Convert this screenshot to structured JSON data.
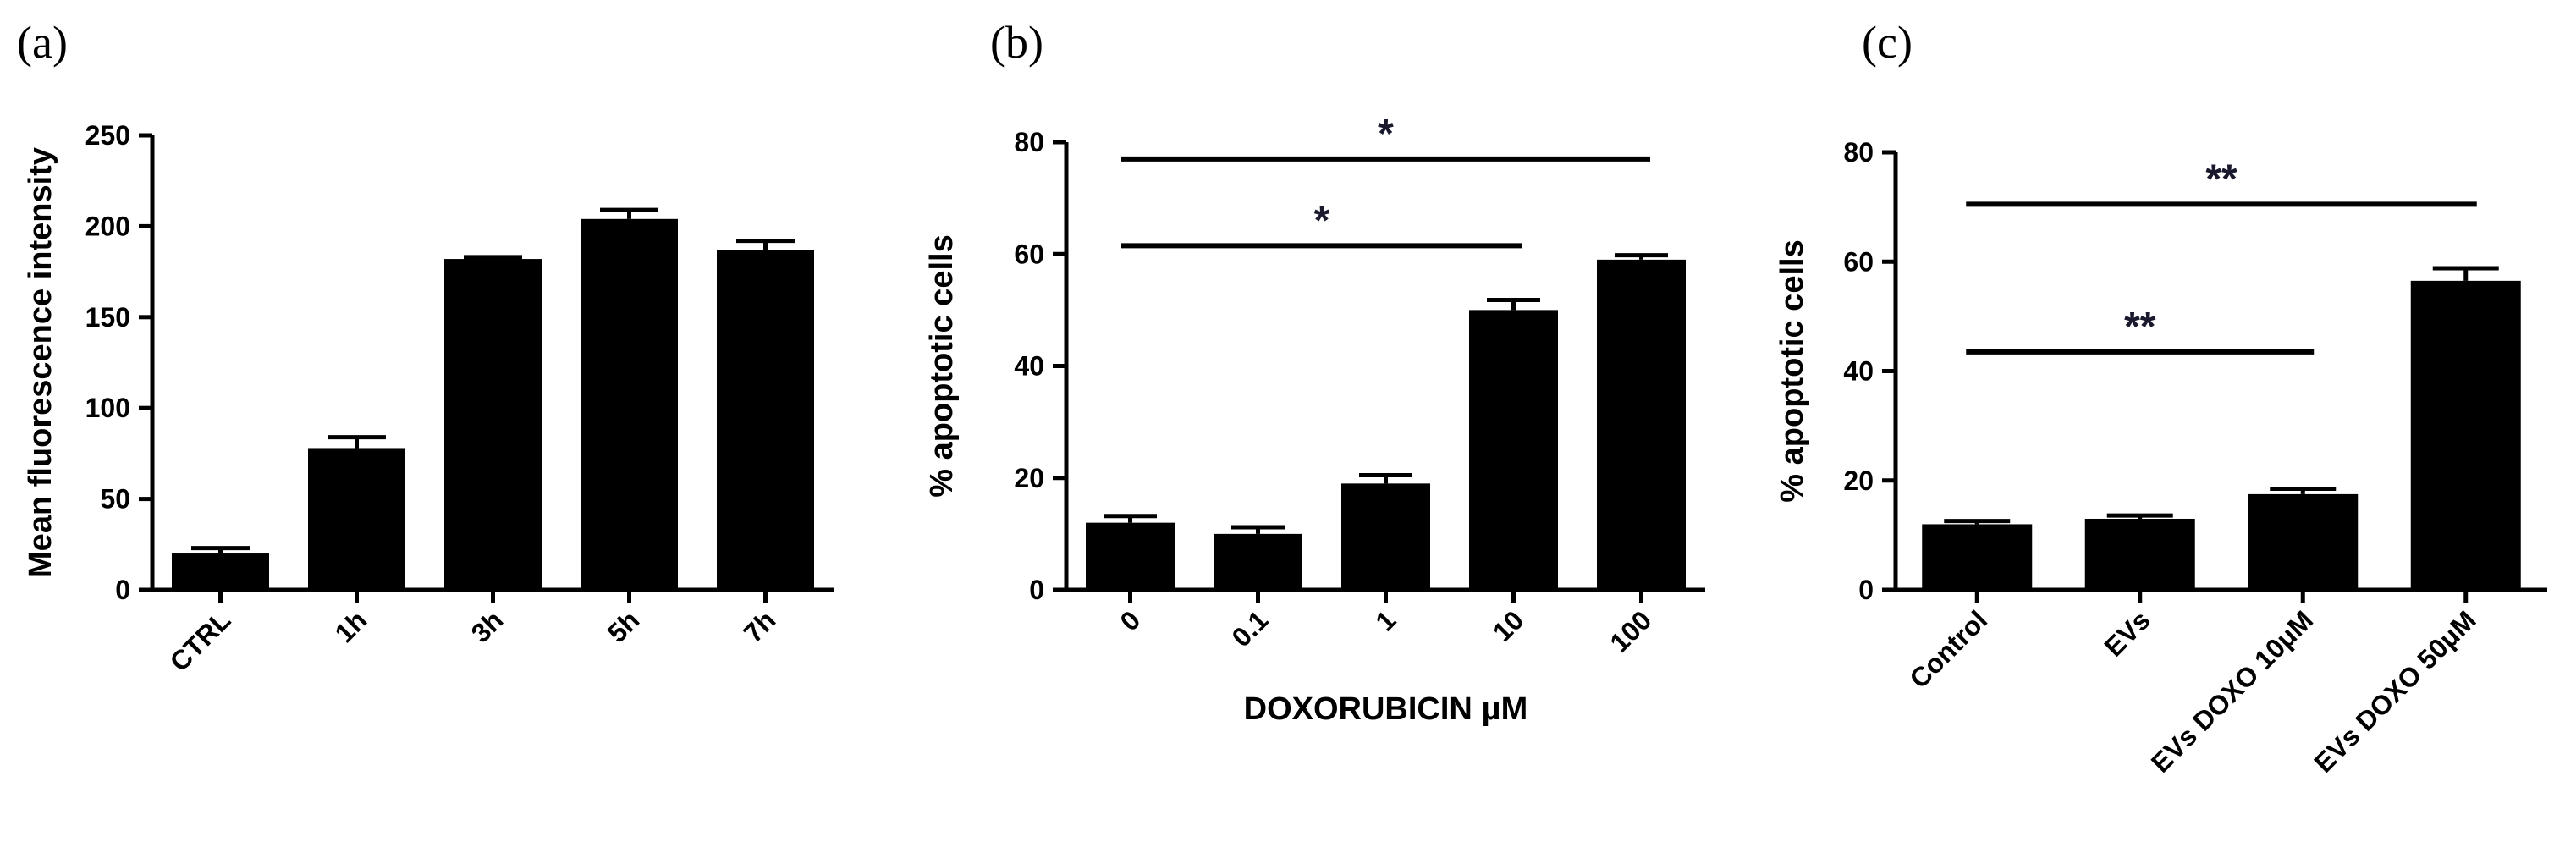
{
  "chart_data": [
    {
      "type": "bar",
      "panel_label": "(a)",
      "categories": [
        "CTRL",
        "1h",
        "3h",
        "5h",
        "7h"
      ],
      "values": [
        20,
        78,
        182,
        204,
        187
      ],
      "errors": [
        3,
        6,
        1,
        5,
        5
      ],
      "xlabel": "",
      "ylabel": "Mean fluorescence intensity",
      "ylim": [
        0,
        250
      ],
      "yticks": [
        0,
        50,
        100,
        150,
        200,
        250
      ],
      "annotations": []
    },
    {
      "type": "bar",
      "panel_label": "(b)",
      "categories": [
        "0",
        "0.1",
        "1",
        "10",
        "100"
      ],
      "values": [
        12,
        10,
        19,
        50,
        59
      ],
      "errors": [
        1.2,
        1.2,
        1.5,
        1.8,
        0.8
      ],
      "xlabel": "DOXORUBICIN μM",
      "ylabel": "% apoptotic cells",
      "ylim": [
        0,
        80
      ],
      "yticks": [
        0,
        20,
        40,
        60,
        80
      ],
      "annotations": [
        {
          "label": "*",
          "from": 0,
          "to": 4,
          "y": 77
        },
        {
          "label": "*",
          "from": 0,
          "to": 3,
          "y": 61.5
        }
      ]
    },
    {
      "type": "bar",
      "panel_label": "(c)",
      "categories": [
        "Control",
        "EVs",
        "EVs DOXO 10μM",
        "EVs DOXO 50μM"
      ],
      "values": [
        12,
        13,
        17.5,
        56.5
      ],
      "errors": [
        0.6,
        0.6,
        1,
        2.3
      ],
      "xlabel": "",
      "ylabel": "% apoptotic cells",
      "ylim": [
        0,
        80
      ],
      "yticks": [
        0,
        20,
        40,
        60,
        80
      ],
      "annotations": [
        {
          "label": "**",
          "from": 0,
          "to": 3,
          "y": 70.5
        },
        {
          "label": "**",
          "from": 0,
          "to": 2,
          "y": 43.5
        }
      ]
    }
  ]
}
